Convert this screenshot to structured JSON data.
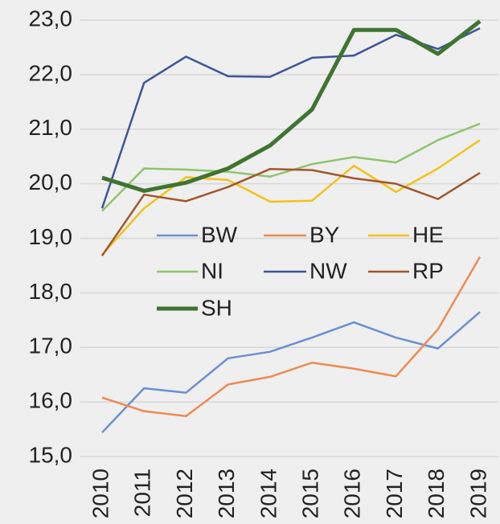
{
  "chart_data": {
    "type": "line",
    "categories": [
      "2010",
      "2011",
      "2012",
      "2013",
      "2014",
      "2015",
      "2016",
      "2017",
      "2018",
      "2019"
    ],
    "series": [
      {
        "name": "BW",
        "color": "#6b8fd2",
        "values": [
          15.44,
          16.25,
          16.17,
          16.8,
          16.92,
          17.18,
          17.46,
          17.18,
          16.98,
          17.65
        ]
      },
      {
        "name": "BY",
        "color": "#ee8a52",
        "values": [
          16.08,
          15.83,
          15.74,
          16.32,
          16.46,
          16.72,
          16.61,
          16.47,
          17.33,
          18.66
        ]
      },
      {
        "name": "HE",
        "color": "#f2c21a",
        "values": [
          18.7,
          19.55,
          20.12,
          20.07,
          19.67,
          19.69,
          20.33,
          19.85,
          20.28,
          20.8
        ]
      },
      {
        "name": "NI",
        "color": "#8fc46d",
        "values": [
          19.5,
          20.28,
          20.26,
          20.22,
          20.13,
          20.36,
          20.49,
          20.39,
          20.8,
          21.1
        ]
      },
      {
        "name": "NW",
        "color": "#3c5596",
        "values": [
          19.55,
          21.85,
          22.33,
          21.97,
          21.96,
          22.31,
          22.35,
          22.73,
          22.47,
          22.85
        ]
      },
      {
        "name": "RP",
        "color": "#a0582c",
        "values": [
          18.68,
          19.8,
          19.68,
          19.94,
          20.27,
          20.25,
          20.1,
          20.0,
          19.72,
          20.2
        ]
      },
      {
        "name": "SH",
        "color": "#3f7431",
        "values": [
          20.11,
          19.87,
          20.02,
          20.28,
          20.7,
          21.36,
          22.82,
          22.82,
          22.38,
          22.98
        ]
      }
    ],
    "ylim": [
      15,
      23
    ],
    "yticks": [
      {
        "value": 15,
        "label": "15,0"
      },
      {
        "value": 16,
        "label": "16,0"
      },
      {
        "value": 17,
        "label": "17,0"
      },
      {
        "value": 18,
        "label": "18,0"
      },
      {
        "value": 19,
        "label": "19,0"
      },
      {
        "value": 20,
        "label": "20,0"
      },
      {
        "value": 21,
        "label": "21,0"
      },
      {
        "value": 22,
        "label": "22,0"
      },
      {
        "value": 23,
        "label": "23,0"
      }
    ],
    "grid": true
  }
}
